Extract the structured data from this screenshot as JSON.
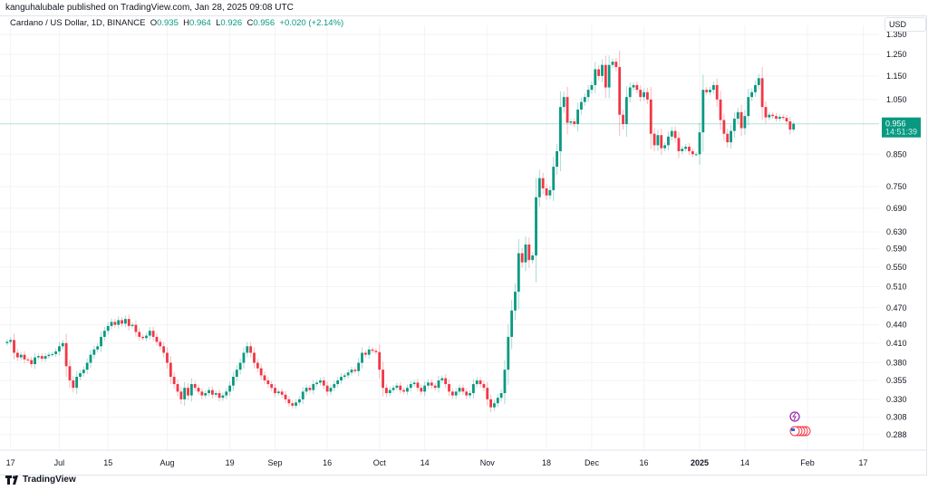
{
  "header": {
    "published": "kanguhalubale published on TradingView.com, Jan 28, 2025 09:08 UTC",
    "symbol": "Cardano / US Dollar, 1D, BINANCE",
    "o_label": "O",
    "o": "0.935",
    "h_label": "H",
    "h": "0.964",
    "l_label": "L",
    "l": "0.926",
    "c_label": "C",
    "c": "0.956",
    "change": "+0.020 (+2.14%)"
  },
  "currency": "USD",
  "brand": "TradingView",
  "colors": {
    "up": "#089981",
    "down": "#f23645",
    "grid": "#f2f3f6",
    "last_price": "#089981"
  },
  "chart_data": {
    "type": "candlestick",
    "scale": "log",
    "grid": true,
    "ylim": [
      0.275,
      1.37
    ],
    "x_start": "2024-06-16",
    "interval": "1D",
    "close": [
      0.412,
      0.415,
      0.395,
      0.388,
      0.392,
      0.385,
      0.384,
      0.378,
      0.388,
      0.39,
      0.386,
      0.39,
      0.392,
      0.393,
      0.397,
      0.405,
      0.41,
      0.375,
      0.355,
      0.345,
      0.36,
      0.365,
      0.37,
      0.38,
      0.392,
      0.4,
      0.405,
      0.42,
      0.43,
      0.438,
      0.445,
      0.44,
      0.448,
      0.442,
      0.45,
      0.438,
      0.44,
      0.428,
      0.42,
      0.418,
      0.422,
      0.43,
      0.42,
      0.412,
      0.405,
      0.395,
      0.38,
      0.36,
      0.35,
      0.34,
      0.33,
      0.345,
      0.335,
      0.35,
      0.345,
      0.34,
      0.335,
      0.338,
      0.342,
      0.336,
      0.338,
      0.332,
      0.335,
      0.34,
      0.348,
      0.36,
      0.37,
      0.38,
      0.395,
      0.405,
      0.395,
      0.38,
      0.372,
      0.362,
      0.355,
      0.35,
      0.345,
      0.338,
      0.34,
      0.336,
      0.33,
      0.325,
      0.322,
      0.326,
      0.33,
      0.34,
      0.345,
      0.342,
      0.35,
      0.352,
      0.355,
      0.348,
      0.34,
      0.345,
      0.35,
      0.355,
      0.36,
      0.362,
      0.366,
      0.37,
      0.368,
      0.38,
      0.395,
      0.392,
      0.4,
      0.398,
      0.396,
      0.37,
      0.345,
      0.338,
      0.342,
      0.345,
      0.348,
      0.342,
      0.34,
      0.345,
      0.35,
      0.352,
      0.345,
      0.34,
      0.348,
      0.352,
      0.348,
      0.345,
      0.355,
      0.358,
      0.35,
      0.34,
      0.335,
      0.34,
      0.345,
      0.34,
      0.335,
      0.338,
      0.35,
      0.355,
      0.35,
      0.345,
      0.33,
      0.32,
      0.325,
      0.332,
      0.338,
      0.37,
      0.42,
      0.465,
      0.5,
      0.58,
      0.56,
      0.6,
      0.565,
      0.575,
      0.72,
      0.775,
      0.745,
      0.725,
      0.74,
      0.81,
      0.86,
      1.02,
      1.06,
      0.96,
      0.965,
      0.955,
      1.01,
      1.04,
      1.06,
      1.09,
      1.11,
      1.18,
      1.15,
      1.2,
      1.1,
      1.2,
      1.215,
      1.19,
      0.99,
      0.955,
      1.06,
      1.1,
      1.11,
      1.09,
      1.06,
      1.08,
      1.05,
      0.92,
      0.88,
      0.915,
      0.87,
      0.88,
      0.91,
      0.93,
      0.905,
      0.86,
      0.868,
      0.875,
      0.86,
      0.85,
      0.85,
      0.925,
      1.09,
      1.08,
      1.09,
      1.11,
      1.05,
      0.97,
      0.92,
      0.89,
      0.93,
      0.975,
      1.0,
      0.94,
      0.985,
      1.06,
      1.08,
      1.11,
      1.14,
      1.02,
      0.98,
      0.99,
      0.985,
      0.975,
      0.982,
      0.978,
      0.965,
      0.935,
      0.956
    ],
    "last_candle": {
      "open": 0.935,
      "high": 0.964,
      "low": 0.926,
      "close": 0.956
    },
    "y_ticks": [
      "1.350",
      "1.250",
      "1.150",
      "1.050",
      "0.850",
      "0.750",
      "0.690",
      "0.630",
      "0.590",
      "0.550",
      "0.510",
      "0.470",
      "0.440",
      "0.410",
      "0.380",
      "0.355",
      "0.330",
      "0.308",
      "0.288"
    ],
    "x_ticks": [
      {
        "label": "17",
        "date": "2024-06-17"
      },
      {
        "label": "Jul",
        "date": "2024-07-01"
      },
      {
        "label": "15",
        "date": "2024-07-15"
      },
      {
        "label": "Aug",
        "date": "2024-08-01"
      },
      {
        "label": "19",
        "date": "2024-08-19"
      },
      {
        "label": "Sep",
        "date": "2024-09-01"
      },
      {
        "label": "16",
        "date": "2024-09-16"
      },
      {
        "label": "Oct",
        "date": "2024-10-01"
      },
      {
        "label": "14",
        "date": "2024-10-14"
      },
      {
        "label": "Nov",
        "date": "2024-11-01"
      },
      {
        "label": "18",
        "date": "2024-11-18"
      },
      {
        "label": "Dec",
        "date": "2024-12-01"
      },
      {
        "label": "16",
        "date": "2024-12-16"
      },
      {
        "label": "2025",
        "date": "2025-01-01",
        "bold": true
      },
      {
        "label": "14",
        "date": "2025-01-14"
      },
      {
        "label": "Feb",
        "date": "2025-02-01"
      },
      {
        "label": "17",
        "date": "2025-02-17"
      }
    ],
    "last_price": {
      "value": "0.956",
      "countdown": "14:51:39"
    }
  }
}
